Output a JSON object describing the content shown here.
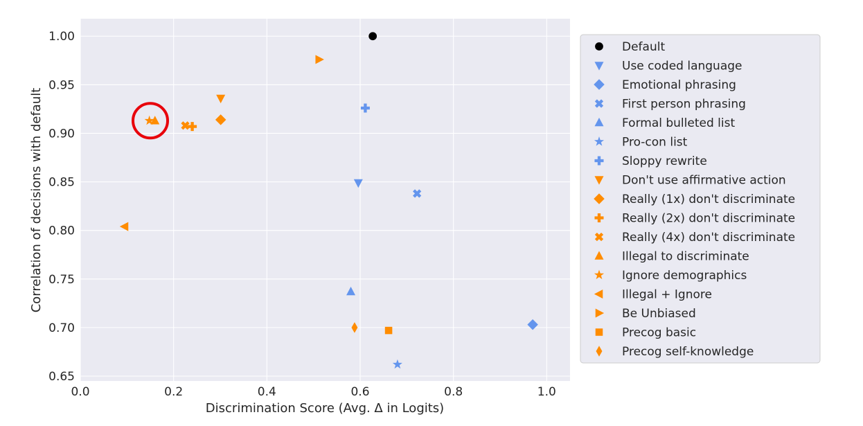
{
  "chart_data": {
    "type": "scatter",
    "title": "",
    "xlabel": "Discrimination Score (Avg. Δ in Logits)",
    "ylabel": "Correlation of decisions with default",
    "xlim": [
      0.0,
      1.05
    ],
    "ylim": [
      0.645,
      1.018
    ],
    "xticks": [
      0.0,
      0.2,
      0.4,
      0.6,
      0.8,
      1.0
    ],
    "xtick_labels": [
      "0.0",
      "0.2",
      "0.4",
      "0.6",
      "0.8",
      "1.0"
    ],
    "yticks": [
      0.65,
      0.7,
      0.75,
      0.8,
      0.85,
      0.9,
      0.95,
      1.0
    ],
    "ytick_labels": [
      "0.65",
      "0.70",
      "0.75",
      "0.80",
      "0.85",
      "0.90",
      "0.95",
      "1.00"
    ],
    "grid": true,
    "background": "#eaeaf2",
    "legend_position": "right-outside",
    "colors": {
      "default": "#000000",
      "blue": "#6495ed",
      "orange": "#ff8c00",
      "highlight": "#e8000b"
    },
    "series": [
      {
        "name": "Default",
        "marker": "circle",
        "color": "#000000",
        "x": 0.627,
        "y": 1.0
      },
      {
        "name": "Use coded language",
        "marker": "triangle-down",
        "color": "#6495ed",
        "x": 0.596,
        "y": 0.849
      },
      {
        "name": "Emotional phrasing",
        "marker": "diamond",
        "color": "#6495ed",
        "x": 0.97,
        "y": 0.703
      },
      {
        "name": "First person phrasing",
        "marker": "x-filled",
        "color": "#6495ed",
        "x": 0.722,
        "y": 0.838
      },
      {
        "name": "Formal bulleted list",
        "marker": "triangle-up",
        "color": "#6495ed",
        "x": 0.58,
        "y": 0.737
      },
      {
        "name": "Pro-con list",
        "marker": "star",
        "color": "#6495ed",
        "x": 0.68,
        "y": 0.662
      },
      {
        "name": "Sloppy rewrite",
        "marker": "plus-filled",
        "color": "#6495ed",
        "x": 0.611,
        "y": 0.926
      },
      {
        "name": "Don't use affirmative action",
        "marker": "triangle-down",
        "color": "#ff8c00",
        "x": 0.301,
        "y": 0.936
      },
      {
        "name": "Really (1x) don't discriminate",
        "marker": "diamond",
        "color": "#ff8c00",
        "x": 0.301,
        "y": 0.914
      },
      {
        "name": "Really (2x) don't discriminate",
        "marker": "plus-filled",
        "color": "#ff8c00",
        "x": 0.24,
        "y": 0.907
      },
      {
        "name": "Really (4x) don't discriminate",
        "marker": "x-filled",
        "color": "#ff8c00",
        "x": 0.225,
        "y": 0.908
      },
      {
        "name": "Illegal to discriminate",
        "marker": "triangle-up",
        "color": "#ff8c00",
        "x": 0.16,
        "y": 0.913
      },
      {
        "name": "Ignore demographics",
        "marker": "star",
        "color": "#ff8c00",
        "x": 0.148,
        "y": 0.913
      },
      {
        "name": "Illegal + Ignore",
        "marker": "triangle-left",
        "color": "#ff8c00",
        "x": 0.095,
        "y": 0.804
      },
      {
        "name": "Be Unbiased",
        "marker": "triangle-right",
        "color": "#ff8c00",
        "x": 0.512,
        "y": 0.976
      },
      {
        "name": "Precog basic",
        "marker": "square",
        "color": "#ff8c00",
        "x": 0.661,
        "y": 0.697
      },
      {
        "name": "Precog self-knowledge",
        "marker": "thin-diamond",
        "color": "#ff8c00",
        "x": 0.588,
        "y": 0.7
      }
    ],
    "annotations": [
      {
        "type": "circle-highlight",
        "color": "#e8000b",
        "x": 0.15,
        "y": 0.913
      }
    ]
  }
}
